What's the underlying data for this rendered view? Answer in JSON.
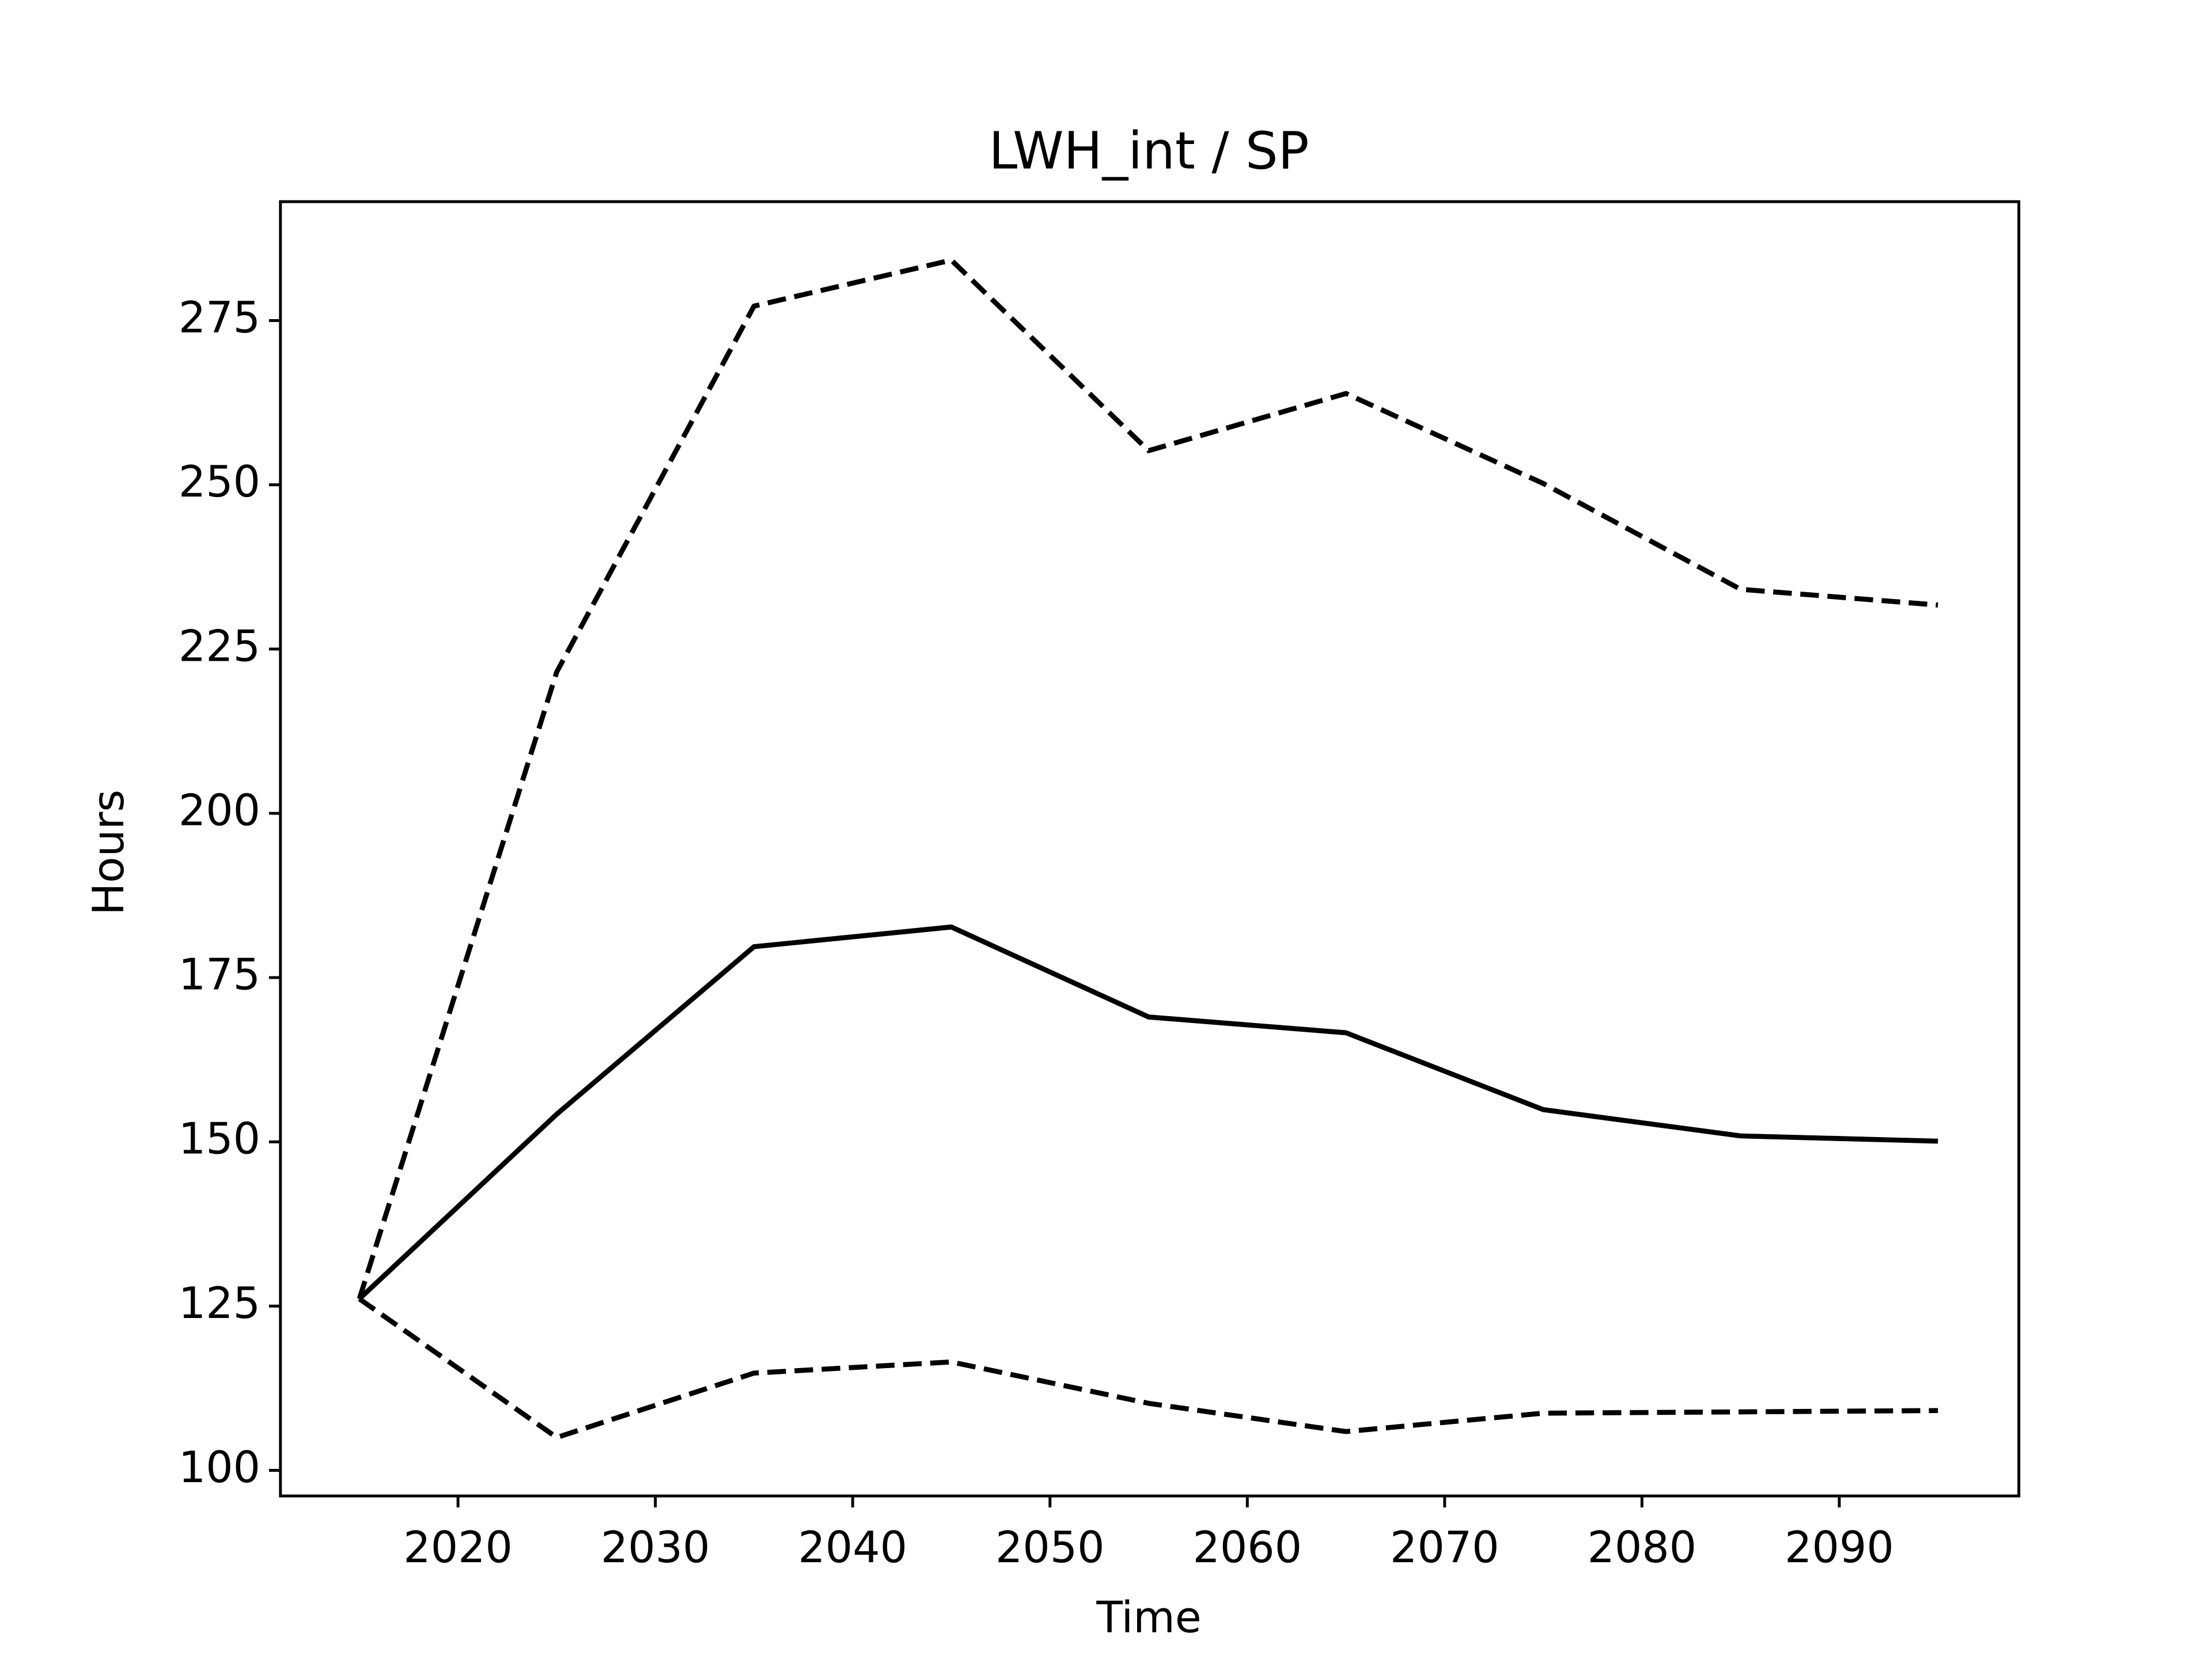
{
  "chart_data": {
    "type": "line",
    "title": "LWH_int / SP",
    "x_label": "Time",
    "y_label": "Hours",
    "x": [
      2015,
      2025,
      2035,
      2045,
      2055,
      2065,
      2075,
      2085,
      2095
    ],
    "series": [
      {
        "color": "#000000",
        "linestyle": "solid",
        "values": [
          126.1,
          154.2,
          179.7,
          182.7,
          169.0,
          166.6,
          154.9,
          150.9,
          150.1
        ]
      },
      {
        "color": "#000000",
        "linestyle": "dashed",
        "values": [
          126.1,
          221.5,
          277.2,
          284.2,
          255.2,
          263.9,
          250.2,
          234.1,
          231.7
        ]
      },
      {
        "color": "#000000",
        "linestyle": "dashed",
        "values": [
          126.1,
          105.0,
          114.8,
          116.5,
          110.2,
          105.9,
          108.7,
          108.9,
          109.1
        ]
      }
    ],
    "xlim": [
      2011.0,
      2099.1
    ],
    "ylim": [
      96.1,
      293.1
    ],
    "xticks": [
      2020,
      2030,
      2040,
      2050,
      2060,
      2070,
      2080,
      2090
    ],
    "yticks": [
      100,
      125,
      150,
      175,
      200,
      225,
      250,
      275
    ],
    "grid": false
  }
}
